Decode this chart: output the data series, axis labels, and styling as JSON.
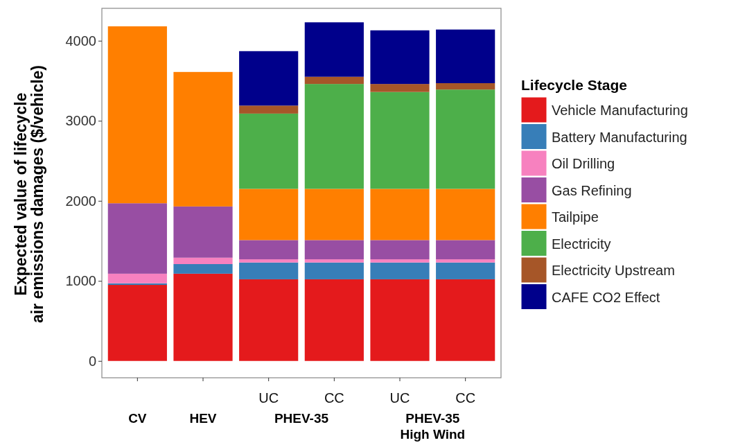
{
  "chart_data": {
    "type": "bar",
    "stacked": true,
    "ylabel": "Expected value of lifecycle\nair emissions damages ($/vehicle)",
    "legend_title": "Lifecycle Stage",
    "legend": "right",
    "categories": [
      null,
      null,
      "UC",
      "CC",
      "UC",
      "CC"
    ],
    "annotations": [
      "CV",
      "HEV",
      "PHEV-35",
      "PHEV-35\nHigh Wind"
    ],
    "ylim": [
      -210,
      4405
    ],
    "yticks": [
      0,
      1000,
      2000,
      3000,
      4000
    ],
    "grid": false,
    "series": [
      {
        "name": "Vehicle Manufacturing",
        "color": "#e41a1c",
        "values": [
          950,
          1090,
          1020,
          1020,
          1020,
          1020
        ]
      },
      {
        "name": "Battery Manufacturing",
        "color": "#377eb8",
        "values": [
          20,
          120,
          210,
          210,
          210,
          210
        ]
      },
      {
        "name": "Oil Drilling",
        "color": "#f781bf",
        "values": [
          120,
          80,
          40,
          40,
          40,
          40
        ]
      },
      {
        "name": "Gas Refining",
        "color": "#984ea3",
        "values": [
          880,
          640,
          240,
          240,
          240,
          240
        ]
      },
      {
        "name": "Tailpipe",
        "color": "#ff7f00",
        "values": [
          2210,
          1680,
          640,
          640,
          640,
          640
        ]
      },
      {
        "name": "Electricity",
        "color": "#4daf4a",
        "values": [
          0,
          0,
          940,
          1310,
          1210,
          1240
        ]
      },
      {
        "name": "Electricity Upstream",
        "color": "#a65628",
        "values": [
          0,
          0,
          100,
          90,
          100,
          80
        ]
      },
      {
        "name": "CAFE CO2 Effect",
        "color": "#00008b",
        "values": [
          0,
          0,
          680,
          680,
          670,
          670
        ]
      }
    ]
  }
}
